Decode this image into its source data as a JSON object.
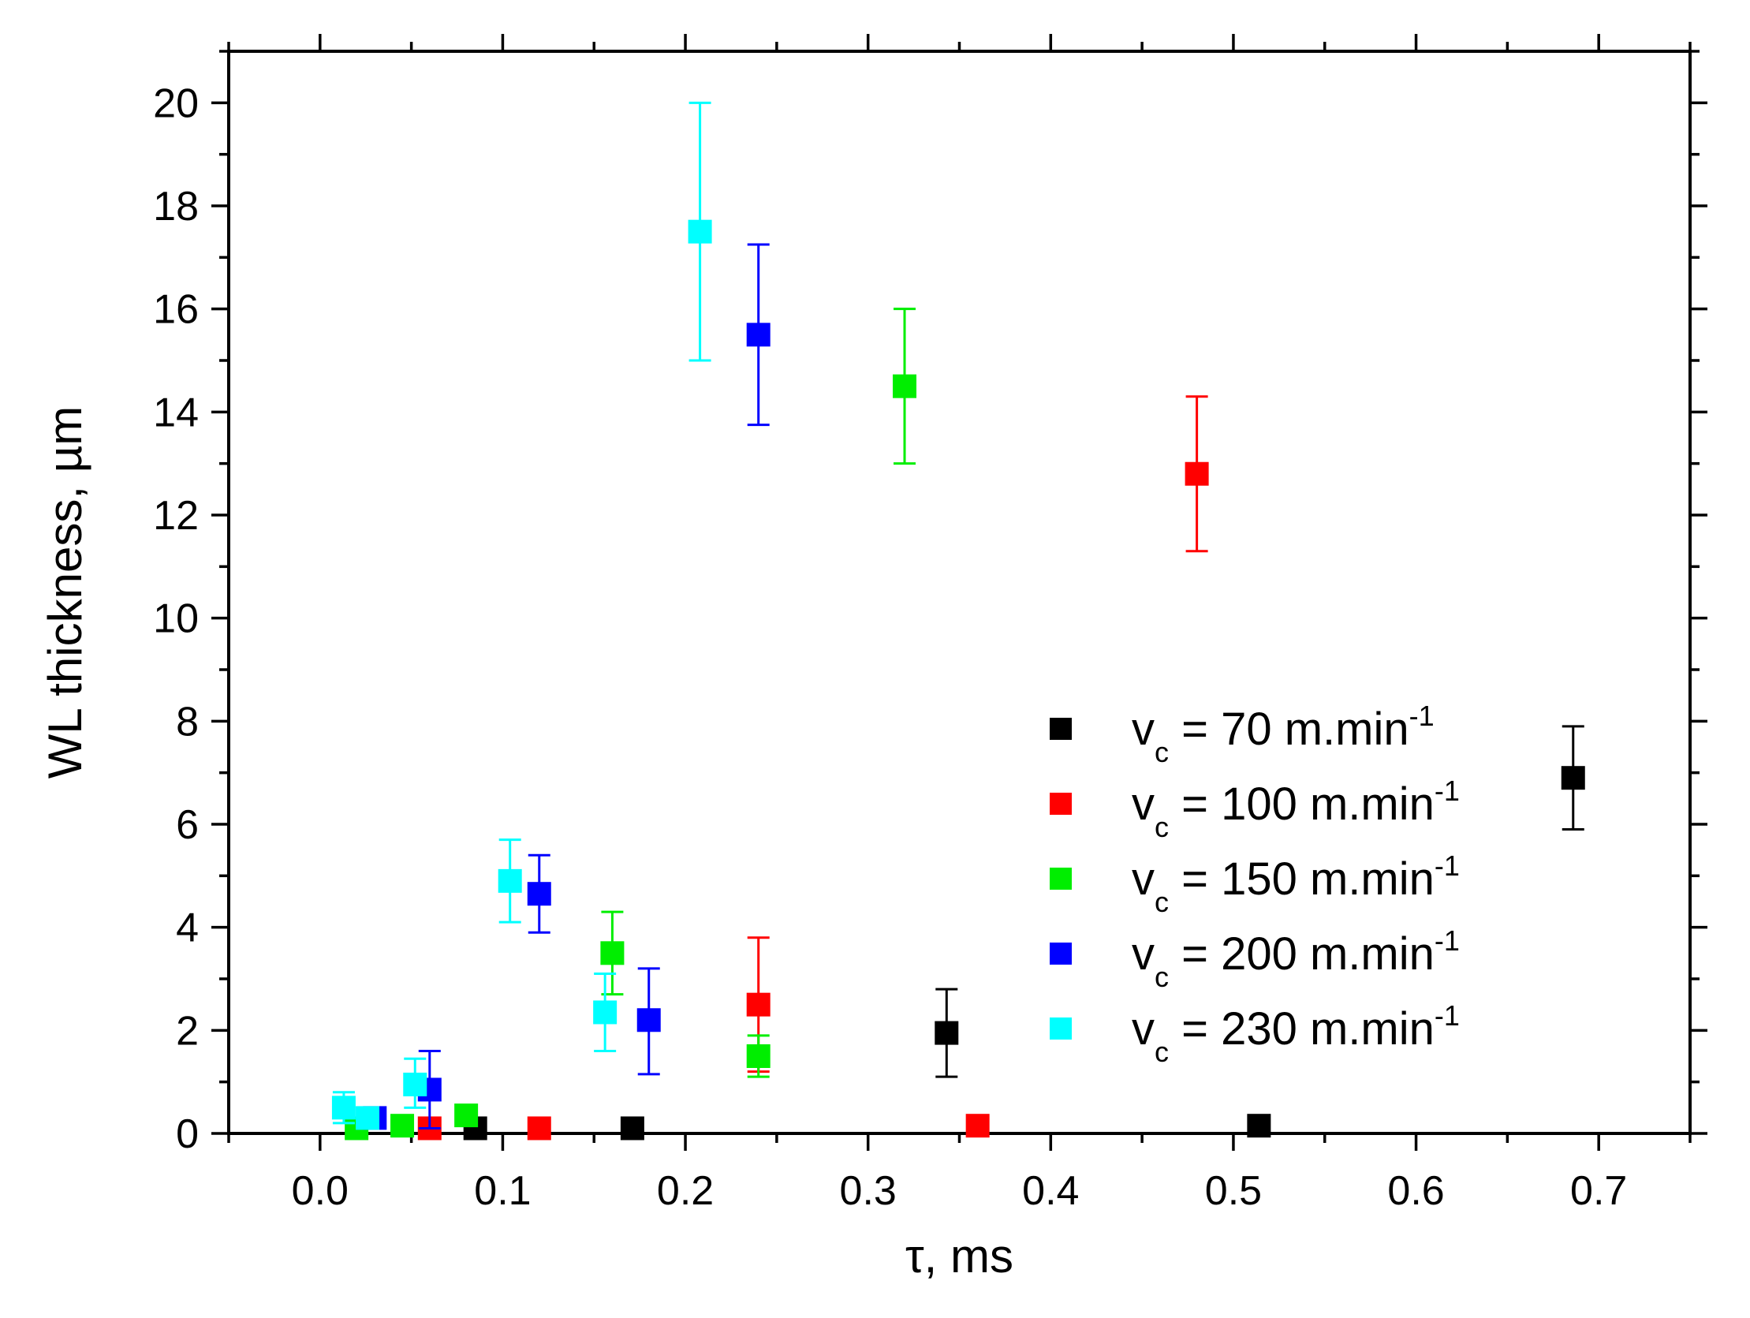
{
  "chart_data": {
    "type": "scatter",
    "title": "",
    "xlabel": "τ, ms",
    "ylabel": "WL thickness, µm",
    "xlim": [
      -0.05,
      0.75
    ],
    "ylim": [
      0,
      21
    ],
    "xticks": [
      "0.0",
      "0.1",
      "0.2",
      "0.3",
      "0.4",
      "0.5",
      "0.6",
      "0.7"
    ],
    "yticks": [
      "0",
      "2",
      "4",
      "6",
      "8",
      "10",
      "12",
      "14",
      "16",
      "18",
      "20"
    ],
    "grid": false,
    "legend_position": "bottom-right",
    "series": [
      {
        "name": "vc = 70 m.min-1",
        "legend_v": "v",
        "legend_sub": "c",
        "legend_rest": " = 70 m.min",
        "legend_sup": "-1",
        "color": "#000000",
        "points": [
          {
            "x": 0.085,
            "y": 0.1,
            "err_low": null,
            "err_high": null
          },
          {
            "x": 0.171,
            "y": 0.1,
            "err_low": null,
            "err_high": null
          },
          {
            "x": 0.343,
            "y": 1.95,
            "err_low": 1.1,
            "err_high": 2.8
          },
          {
            "x": 0.514,
            "y": 0.15,
            "err_low": null,
            "err_high": null
          },
          {
            "x": 0.686,
            "y": 6.9,
            "err_low": 5.9,
            "err_high": 7.9
          }
        ]
      },
      {
        "name": "vc = 100 m.min-1",
        "legend_v": "v",
        "legend_sub": "c",
        "legend_rest": " = 100 m.min",
        "legend_sup": "-1",
        "color": "#ff0000",
        "points": [
          {
            "x": 0.06,
            "y": 0.1,
            "err_low": null,
            "err_high": null
          },
          {
            "x": 0.12,
            "y": 0.1,
            "err_low": null,
            "err_high": null
          },
          {
            "x": 0.24,
            "y": 2.5,
            "err_low": 1.2,
            "err_high": 3.8
          },
          {
            "x": 0.36,
            "y": 0.15,
            "err_low": null,
            "err_high": null
          },
          {
            "x": 0.48,
            "y": 12.8,
            "err_low": 11.3,
            "err_high": 14.3
          }
        ]
      },
      {
        "name": "vc = 150 m.min-1",
        "legend_v": "v",
        "legend_sub": "c",
        "legend_rest": " = 150 m.min",
        "legend_sup": "-1",
        "color": "#00ee00",
        "points": [
          {
            "x": 0.02,
            "y": 0.1,
            "err_low": null,
            "err_high": null
          },
          {
            "x": 0.045,
            "y": 0.15,
            "err_low": null,
            "err_high": null
          },
          {
            "x": 0.08,
            "y": 0.35,
            "err_low": null,
            "err_high": null
          },
          {
            "x": 0.16,
            "y": 3.5,
            "err_low": 2.7,
            "err_high": 4.3
          },
          {
            "x": 0.24,
            "y": 1.5,
            "err_low": 1.1,
            "err_high": 1.9
          },
          {
            "x": 0.32,
            "y": 14.5,
            "err_low": 13.0,
            "err_high": 16.0
          }
        ]
      },
      {
        "name": "vc = 200 m.min-1",
        "legend_v": "v",
        "legend_sub": "c",
        "legend_rest": " = 200 m.min",
        "legend_sup": "-1",
        "color": "#0000ff",
        "points": [
          {
            "x": 0.03,
            "y": 0.3,
            "err_low": null,
            "err_high": null
          },
          {
            "x": 0.06,
            "y": 0.85,
            "err_low": 0.1,
            "err_high": 1.6
          },
          {
            "x": 0.12,
            "y": 4.65,
            "err_low": 3.9,
            "err_high": 5.4
          },
          {
            "x": 0.18,
            "y": 2.2,
            "err_low": 1.15,
            "err_high": 3.2
          },
          {
            "x": 0.24,
            "y": 15.5,
            "err_low": 13.75,
            "err_high": 17.25
          }
        ]
      },
      {
        "name": "vc = 230 m.min-1",
        "legend_v": "v",
        "legend_sub": "c",
        "legend_rest": " = 230 m.min",
        "legend_sup": "-1",
        "color": "#00ffff",
        "points": [
          {
            "x": 0.013,
            "y": 0.5,
            "err_low": 0.2,
            "err_high": 0.8
          },
          {
            "x": 0.026,
            "y": 0.3,
            "err_low": null,
            "err_high": null
          },
          {
            "x": 0.052,
            "y": 0.95,
            "err_low": 0.5,
            "err_high": 1.45
          },
          {
            "x": 0.104,
            "y": 4.9,
            "err_low": 4.1,
            "err_high": 5.7
          },
          {
            "x": 0.156,
            "y": 2.35,
            "err_low": 1.6,
            "err_high": 3.1
          },
          {
            "x": 0.208,
            "y": 17.5,
            "err_low": 15.0,
            "err_high": 20.0
          }
        ]
      }
    ]
  }
}
